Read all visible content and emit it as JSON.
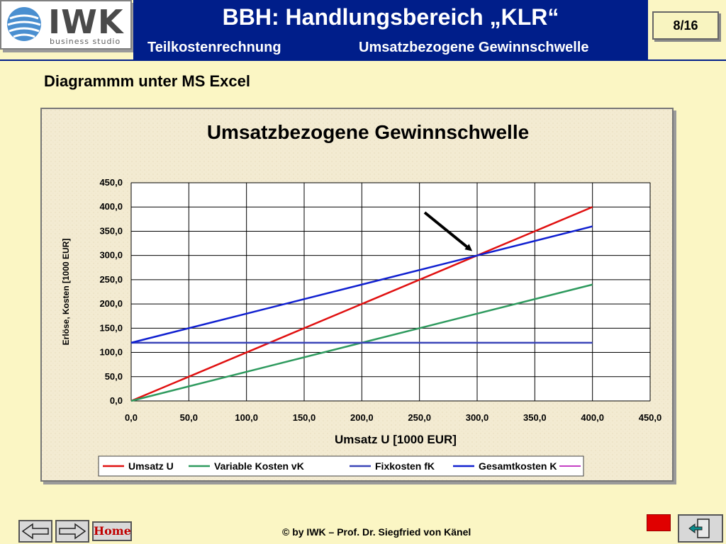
{
  "header": {
    "logo_text": "IWK",
    "logo_subtitle": "business studio",
    "title": "BBH: Handlungsbereich „KLR“",
    "subtitle_left": "Teilkostenrechnung",
    "subtitle_right": "Umsatzbezogene Gewinnschwelle",
    "page_indicator": "8/16"
  },
  "section_heading": "Diagrammm unter MS Excel",
  "chart_data": {
    "type": "line",
    "title": "Umsatzbezogene Gewinnschwelle",
    "xlabel": "Umsatz U [1000 EUR]",
    "ylabel": "Erlöse, Kosten [1000 EUR]",
    "xlim": [
      0,
      450
    ],
    "ylim": [
      0,
      450
    ],
    "x_ticks": [
      "0,0",
      "50,0",
      "100,0",
      "150,0",
      "200,0",
      "250,0",
      "300,0",
      "350,0",
      "400,0",
      "450,0"
    ],
    "y_ticks": [
      "0,0",
      "50,0",
      "100,0",
      "150,0",
      "200,0",
      "250,0",
      "300,0",
      "350,0",
      "400,0",
      "450,0"
    ],
    "x": [
      0,
      400
    ],
    "series": [
      {
        "name": "Umsatz U",
        "color": "#e01010",
        "values": [
          0,
          400
        ]
      },
      {
        "name": "Variable Kosten vK",
        "color": "#2e9a5e",
        "values": [
          0,
          240
        ]
      },
      {
        "name": "Fixkosten fK",
        "color": "#3a44b8",
        "values": [
          120,
          120
        ]
      },
      {
        "name": "Gesamtkosten K",
        "color": "#1020d0",
        "values": [
          120,
          360
        ]
      }
    ],
    "legend_extra_color": "#b000b0",
    "annotation": {
      "type": "arrow",
      "points_to": [
        300,
        300
      ]
    },
    "grid": true,
    "legend_position": "bottom"
  },
  "footer": {
    "home_label": "Home",
    "copyright": "© by IWK – Prof. Dr. Siegfried von Känel"
  }
}
